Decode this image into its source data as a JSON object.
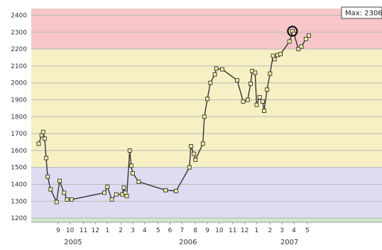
{
  "chart_data": {
    "type": "line",
    "ylim": [
      1175,
      2440
    ],
    "xlim": [
      2005.52,
      2007.87
    ],
    "yticks": [
      1200,
      1300,
      1400,
      1500,
      1600,
      1700,
      1800,
      1900,
      2000,
      2100,
      2200,
      2300,
      2400
    ],
    "bands": [
      {
        "from": 2200,
        "to": 2440,
        "color": "#f6c6c8"
      },
      {
        "from": 1500,
        "to": 2200,
        "color": "#f7f0c4"
      },
      {
        "from": 1200,
        "to": 1500,
        "color": "#dfdcf1"
      },
      {
        "from": 1175,
        "to": 1200,
        "color": "#cfe8cc"
      }
    ],
    "month_ticks": [
      {
        "label": "9",
        "x": 2005.7
      },
      {
        "label": "10",
        "x": 2005.78
      },
      {
        "label": "11",
        "x": 2005.87
      },
      {
        "label": "12",
        "x": 2005.95
      },
      {
        "label": "1",
        "x": 2006.03
      },
      {
        "label": "2",
        "x": 2006.12
      },
      {
        "label": "3",
        "x": 2006.2
      },
      {
        "label": "4",
        "x": 2006.28
      },
      {
        "label": "5",
        "x": 2006.37
      },
      {
        "label": "6",
        "x": 2006.45
      },
      {
        "label": "7",
        "x": 2006.53
      },
      {
        "label": "8",
        "x": 2006.62
      },
      {
        "label": "9",
        "x": 2006.7
      },
      {
        "label": "10",
        "x": 2006.78
      },
      {
        "label": "11",
        "x": 2006.87
      },
      {
        "label": "12",
        "x": 2006.95
      },
      {
        "label": "1",
        "x": 2007.03
      },
      {
        "label": "2",
        "x": 2007.12
      },
      {
        "label": "3",
        "x": 2007.2
      },
      {
        "label": "4",
        "x": 2007.28
      },
      {
        "label": "5",
        "x": 2007.37
      }
    ],
    "year_labels": [
      {
        "label": "2005",
        "x": 2005.8
      },
      {
        "label": "2006",
        "x": 2006.57
      },
      {
        "label": "2007",
        "x": 2007.25
      }
    ],
    "series": [
      {
        "color": "#333333",
        "x": [
          2005.57,
          2005.59,
          2005.6,
          2005.61,
          2005.62,
          2005.63,
          2005.65,
          2005.69,
          2005.71,
          2005.74,
          2005.76,
          2005.79,
          2006.01,
          2006.03,
          2006.06,
          2006.09,
          2006.13,
          2006.14,
          2006.15,
          2006.16,
          2006.18,
          2006.19,
          2006.2,
          2006.24,
          2006.42,
          2006.49,
          2006.58,
          2006.59,
          2006.61,
          2006.62,
          2006.67,
          2006.68,
          2006.7,
          2006.72,
          2006.75,
          2006.76,
          2006.8,
          2006.9,
          2006.94,
          2006.97,
          2006.99,
          2007.0,
          2007.02,
          2007.03,
          2007.05,
          2007.07,
          2007.08,
          2007.1,
          2007.12,
          2007.14,
          2007.15,
          2007.17,
          2007.19,
          2007.25,
          2007.27,
          2007.28,
          2007.31,
          2007.33,
          2007.36,
          2007.38
        ],
        "values": [
          1640,
          1690,
          1710,
          1670,
          1555,
          1445,
          1370,
          1295,
          1420,
          1350,
          1310,
          1310,
          1350,
          1385,
          1310,
          1340,
          1340,
          1380,
          1350,
          1330,
          1600,
          1510,
          1465,
          1415,
          1365,
          1360,
          1500,
          1625,
          1580,
          1545,
          1640,
          1800,
          1905,
          2000,
          2050,
          2085,
          2080,
          2015,
          1890,
          1900,
          1995,
          2070,
          2060,
          1870,
          1915,
          1890,
          1835,
          1960,
          2055,
          2160,
          2140,
          2165,
          2170,
          2245,
          2306,
          2290,
          2200,
          2215,
          2260,
          2280
        ]
      }
    ],
    "max_label": "Max: 2306",
    "max_point": {
      "x": 2007.27,
      "y": 2306
    }
  }
}
